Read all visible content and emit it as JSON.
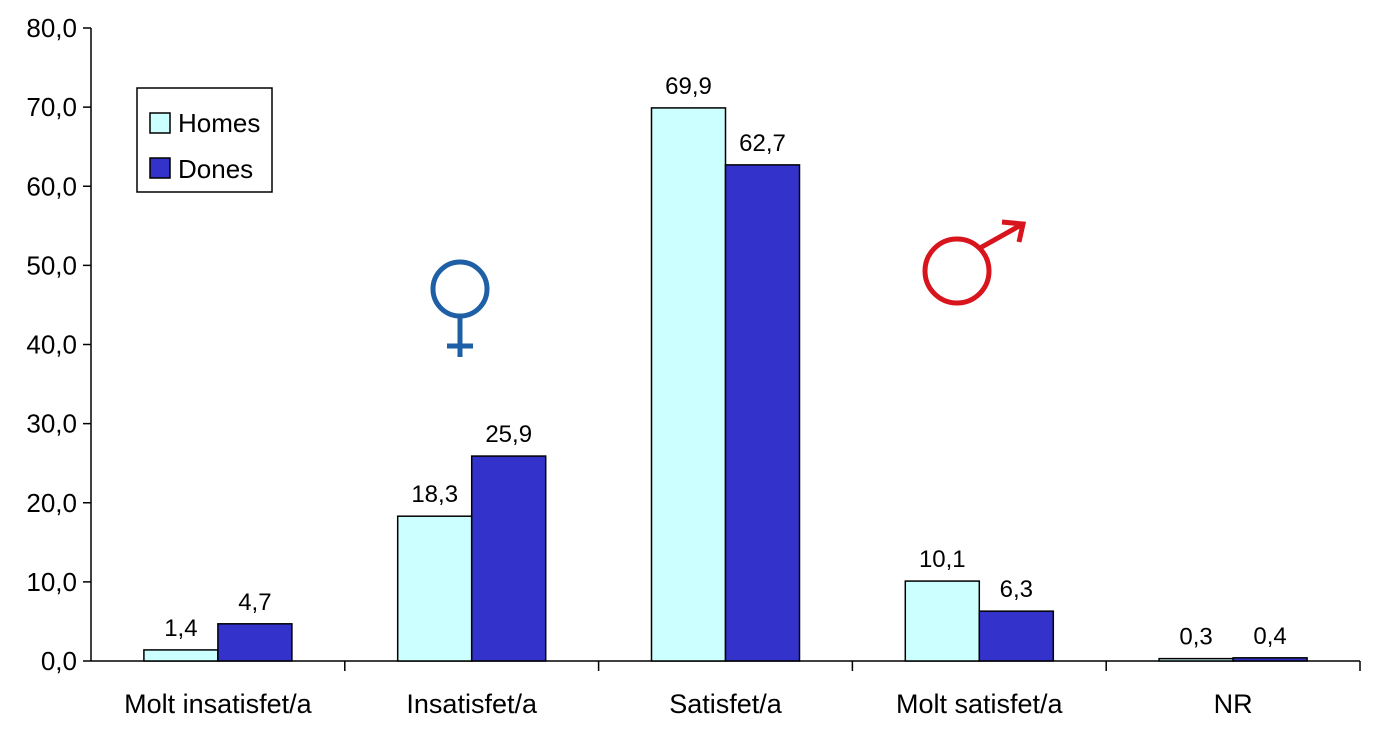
{
  "chart_data": {
    "type": "bar",
    "categories": [
      "Molt insatisfet/a",
      "Insatisfet/a",
      "Satisfet/a",
      "Molt satisfet/a",
      "NR"
    ],
    "series": [
      {
        "name": "Homes",
        "values": [
          1.4,
          18.3,
          69.9,
          10.1,
          0.3
        ],
        "labels": [
          "1,4",
          "18,3",
          "69,9",
          "10,1",
          "0,3"
        ],
        "color": "#ccffff"
      },
      {
        "name": "Dones",
        "values": [
          4.7,
          25.9,
          62.7,
          6.3,
          0.4
        ],
        "labels": [
          "4,7",
          "25,9",
          "62,7",
          "6,3",
          "0,4"
        ],
        "color": "#3333cc"
      }
    ],
    "yticks": [
      "0,0",
      "10,0",
      "20,0",
      "30,0",
      "40,0",
      "50,0",
      "60,0",
      "70,0",
      "80,0"
    ],
    "ylim": [
      0,
      80
    ],
    "grid": false,
    "legend_position": "top-left",
    "xlabel": "",
    "ylabel": "",
    "title": ""
  },
  "symbols": {
    "female_symbol_color": "#1f5fa6",
    "male_symbol_color": "#d8141c"
  }
}
